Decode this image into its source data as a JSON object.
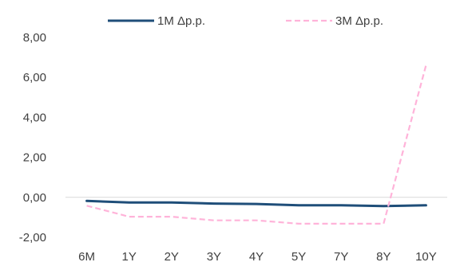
{
  "chart_data": {
    "type": "line",
    "title": "",
    "xlabel": "",
    "ylabel": "",
    "categories": [
      "6M",
      "1Y",
      "2Y",
      "3Y",
      "4Y",
      "5Y",
      "7Y",
      "8Y",
      "10Y"
    ],
    "ylim": [
      -2,
      8
    ],
    "yticks": [
      "-2,00",
      "0,00",
      "2,00",
      "4,00",
      "6,00",
      "8,00"
    ],
    "ytick_values": [
      -2,
      0,
      2,
      4,
      6,
      8
    ],
    "grid": false,
    "legend_position": "top",
    "series": [
      {
        "name": "1M Δp.p.",
        "color": "#1f4e79",
        "style": "solid",
        "values": [
          -0.18,
          -0.26,
          -0.26,
          -0.31,
          -0.33,
          -0.4,
          -0.4,
          -0.44,
          -0.4
        ]
      },
      {
        "name": "3M Δp.p.",
        "color": "#ffb3d9",
        "style": "dashed",
        "values": [
          -0.42,
          -0.97,
          -0.97,
          -1.15,
          -1.15,
          -1.32,
          -1.32,
          -1.32,
          6.6
        ]
      }
    ]
  }
}
